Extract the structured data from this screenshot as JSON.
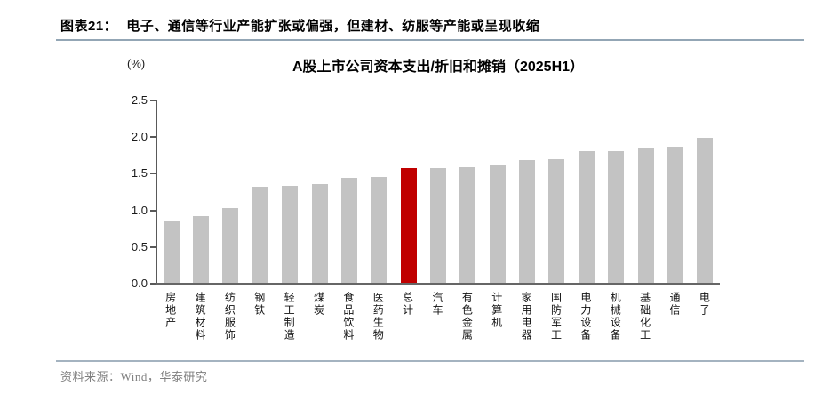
{
  "header": {
    "figure_label": "图表21：",
    "title": "电子、通信等行业产能扩张或偏强，但建材、纺服等产能或呈现收缩"
  },
  "chart": {
    "unit_label": "(%)",
    "title": "A股上市公司资本支出/折旧和摊销（2025H1）"
  },
  "chart_data": {
    "type": "bar",
    "title": "A股上市公司资本支出/折旧和摊销（2025H1）",
    "ylabel": "(%)",
    "ylim": [
      0,
      2.5
    ],
    "yticks": [
      "0.0",
      "0.5",
      "1.0",
      "1.5",
      "2.0",
      "2.5"
    ],
    "grid": false,
    "legend": false,
    "categories": [
      "房地产",
      "建筑材料",
      "纺织服饰",
      "钢铁",
      "轻工制造",
      "煤炭",
      "食品饮料",
      "医药生物",
      "总计",
      "汽车",
      "有色金属",
      "计算机",
      "家用电器",
      "国防军工",
      "电力设备",
      "机械设备",
      "基础化工",
      "通信",
      "电子"
    ],
    "values": [
      0.84,
      0.91,
      1.02,
      1.31,
      1.32,
      1.35,
      1.43,
      1.45,
      1.56,
      1.57,
      1.58,
      1.62,
      1.68,
      1.69,
      1.8,
      1.8,
      1.84,
      1.86,
      1.98
    ],
    "highlight_category": "总计",
    "bar_color": "#c3c3c3",
    "highlight_color": "#c00000",
    "axis_color": "#595959"
  },
  "footer": {
    "source": "资料来源：Wind，华泰研究"
  }
}
